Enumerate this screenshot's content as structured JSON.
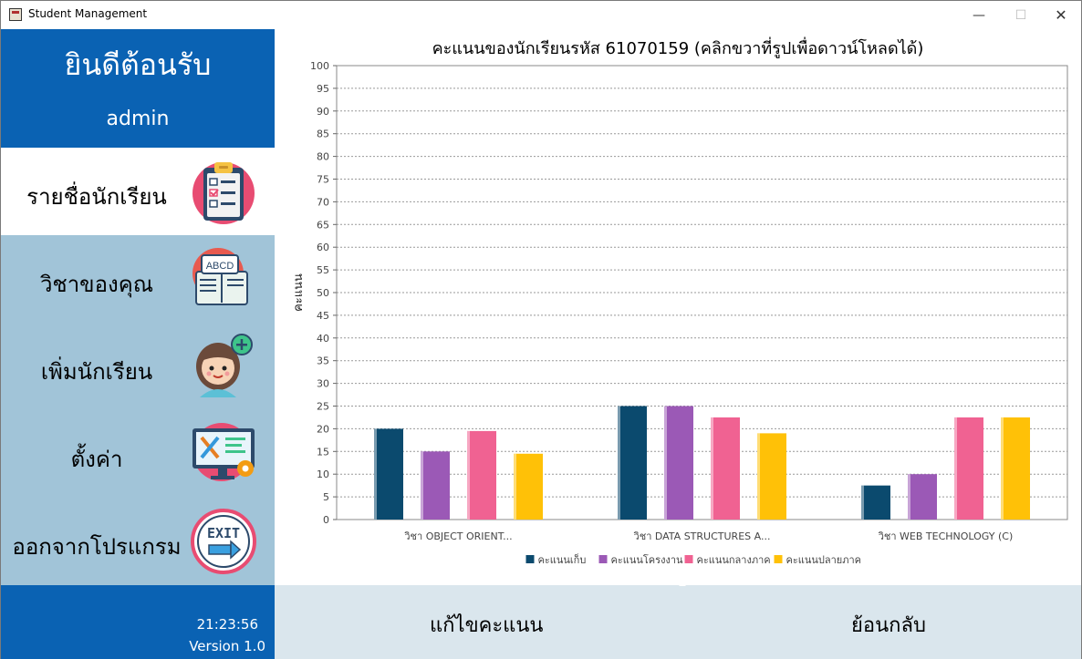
{
  "window": {
    "title": "Student Management",
    "minimize_glyph": "—",
    "maximize_glyph": "☐",
    "close_glyph": "✕"
  },
  "sidebar": {
    "welcome_title": "ยินดีต้อนรับ",
    "username": "admin",
    "items": [
      {
        "label": "รายชื่อนักเรียน",
        "icon": "clipboard-checklist-icon",
        "active": true
      },
      {
        "label": "วิชาของคุณ",
        "icon": "abcd-book-icon",
        "active": false
      },
      {
        "label": "เพิ่มนักเรียน",
        "icon": "add-student-icon",
        "active": false
      },
      {
        "label": "ตั้งค่า",
        "icon": "settings-tools-monitor-icon",
        "active": false
      },
      {
        "label": "ออกจากโปรแกรม",
        "icon": "exit-sign-icon",
        "active": false
      }
    ],
    "clock": "21:23:56",
    "version": "Version 1.0"
  },
  "bottom": {
    "edit_label": "แก้ไขคะแนน",
    "back_label": "ย้อนกลับ"
  },
  "colors": {
    "sidebar_blue": "#0a62b3",
    "menu_bg": "#a1c4d8",
    "bottom_bg": "#dae6ed"
  },
  "chart_data": {
    "type": "bar",
    "title": "คะแนนของนักเรียนรหัส 61070159 (คลิกขวาที่รูปเพื่อดาวน์โหลดได้)",
    "xlabel": "",
    "ylabel": "คะแนน",
    "ylim": [
      0,
      100
    ],
    "ytick_step": 5,
    "grid": true,
    "legend_position": "bottom",
    "categories": [
      "วิชา OBJECT ORIENT...",
      "วิชา DATA STRUCTURES A...",
      "วิชา WEB TECHNOLOGY (C)"
    ],
    "series": [
      {
        "name": "คะแนนเก็บ",
        "color": "#0b4a6e",
        "values": [
          20,
          25,
          7.5
        ]
      },
      {
        "name": "คะแนนโครงงาน",
        "color": "#9b59b6",
        "values": [
          15,
          25,
          10
        ]
      },
      {
        "name": "คะแนนกลางภาค",
        "color": "#f06292",
        "values": [
          19.5,
          22.5,
          22.5
        ]
      },
      {
        "name": "คะแนนปลายภาค",
        "color": "#ffc107",
        "values": [
          14.5,
          19,
          22.5
        ]
      }
    ]
  }
}
